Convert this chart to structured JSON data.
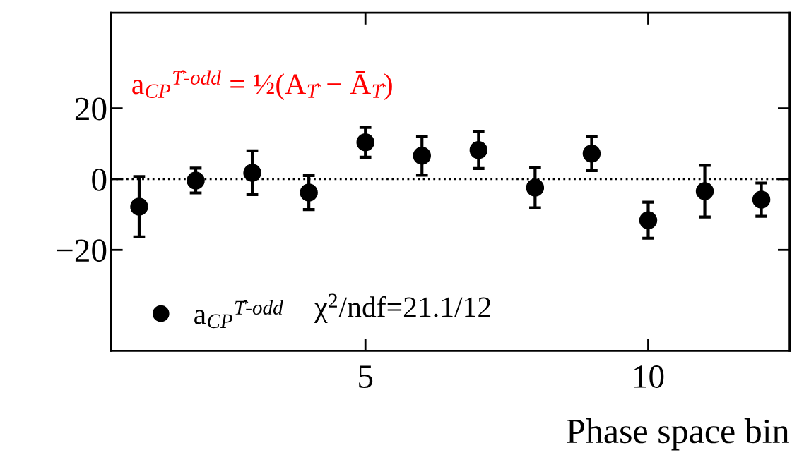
{
  "chart_data": {
    "type": "scatter",
    "xlabel": "Phase space bin",
    "x": [
      1,
      2,
      3,
      4,
      5,
      6,
      7,
      8,
      9,
      10,
      11,
      12
    ],
    "series": [
      {
        "name": "a$_{CP}$$^{T̂-odd}$",
        "color": "#000000",
        "values": [
          -7.8,
          -0.4,
          1.8,
          -3.8,
          10.4,
          6.6,
          8.2,
          -2.4,
          7.2,
          -11.6,
          -3.4,
          -5.8
        ],
        "errors": [
          8.5,
          3.5,
          6.2,
          4.8,
          4.2,
          5.5,
          5.2,
          5.7,
          4.8,
          5.1,
          7.3,
          4.7
        ]
      }
    ],
    "marker": "circle",
    "xlim": [
      0.5,
      12.5
    ],
    "xticks": [
      5,
      10
    ],
    "ylim": [
      -48.5,
      47
    ],
    "yticks": [
      -20,
      0,
      20
    ],
    "ref_lines": [
      {
        "axis": "y",
        "value": 0,
        "color": "#000000",
        "line_style": "dotted"
      }
    ],
    "annotations": [
      "a$_{CP}$$^{T̂-odd}$ = ½(A$_{T̂}$ − Ā$_{T̂}$)",
      "χ$^{2}$/ndf=21.1/12"
    ],
    "legend": "bottom left",
    "grid": false
  }
}
